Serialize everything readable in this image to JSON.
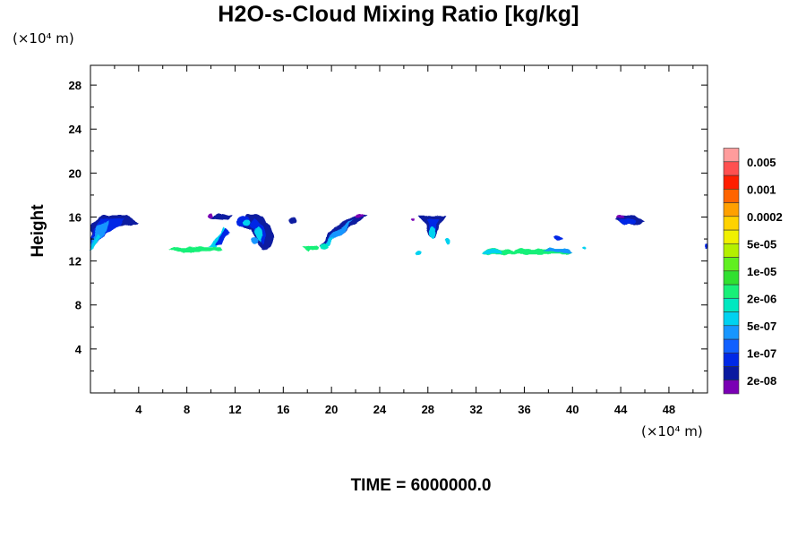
{
  "chart_data": {
    "type": "contour",
    "title": "H2O-s-Cloud Mixing Ratio [kg/kg]",
    "xlabel": "",
    "ylabel": "Height",
    "x_unit": "(×10⁴ m)",
    "y_unit": "(×10⁴ m)",
    "time_label": "TIME = 6000000.0",
    "xlim": [
      0,
      51.2
    ],
    "ylim": [
      0,
      29.8
    ],
    "x_ticks": [
      4,
      8,
      12,
      16,
      20,
      24,
      28,
      32,
      36,
      40,
      44,
      48
    ],
    "y_ticks": [
      4,
      8,
      12,
      16,
      20,
      24,
      28
    ],
    "colorbar": {
      "levels": [
        "2e-08",
        "1e-07",
        "5e-07",
        "2e-06",
        "1e-05",
        "5e-05",
        "0.0002",
        "0.001",
        "0.005"
      ],
      "colors": [
        "#7a00b4",
        "#0a1aa0",
        "#0028e6",
        "#1060ff",
        "#1896ff",
        "#00d2f0",
        "#00e8c0",
        "#18f078",
        "#30e030",
        "#60f020",
        "#b4f000",
        "#f0f000",
        "#ffd200",
        "#ffa000",
        "#ff6400",
        "#ff1e00",
        "#ff5050",
        "#ff9c9c"
      ]
    },
    "cloud_features": [
      {
        "x": [
          0,
          4
        ],
        "y": [
          13,
          16.2
        ],
        "level": "5e-07"
      },
      {
        "x": [
          6.5,
          11
        ],
        "y": [
          12.8,
          16
        ],
        "level": "2e-06"
      },
      {
        "x": [
          12.5,
          15.5
        ],
        "y": [
          13,
          16
        ],
        "level": "5e-07"
      },
      {
        "x": [
          16.5,
          17
        ],
        "y": [
          15.5,
          16
        ],
        "level": "2e-08"
      },
      {
        "x": [
          17.5,
          19
        ],
        "y": [
          12.8,
          13.5
        ],
        "level": "2e-06"
      },
      {
        "x": [
          19,
          23
        ],
        "y": [
          13.3,
          16.2
        ],
        "level": "5e-07"
      },
      {
        "x": [
          26.5,
          27
        ],
        "y": [
          15.7,
          16
        ],
        "level": "2e-08"
      },
      {
        "x": [
          27,
          29.5
        ],
        "y": [
          12.5,
          16.1
        ],
        "level": "5e-07"
      },
      {
        "x": [
          32.5,
          40
        ],
        "y": [
          12.6,
          13.2
        ],
        "level": "2e-06"
      },
      {
        "x": [
          43.5,
          46
        ],
        "y": [
          15.3,
          16.1
        ],
        "level": "2e-08"
      },
      {
        "x": [
          51,
          51.2
        ],
        "y": [
          13,
          13.5
        ],
        "level": "5e-07"
      }
    ]
  }
}
